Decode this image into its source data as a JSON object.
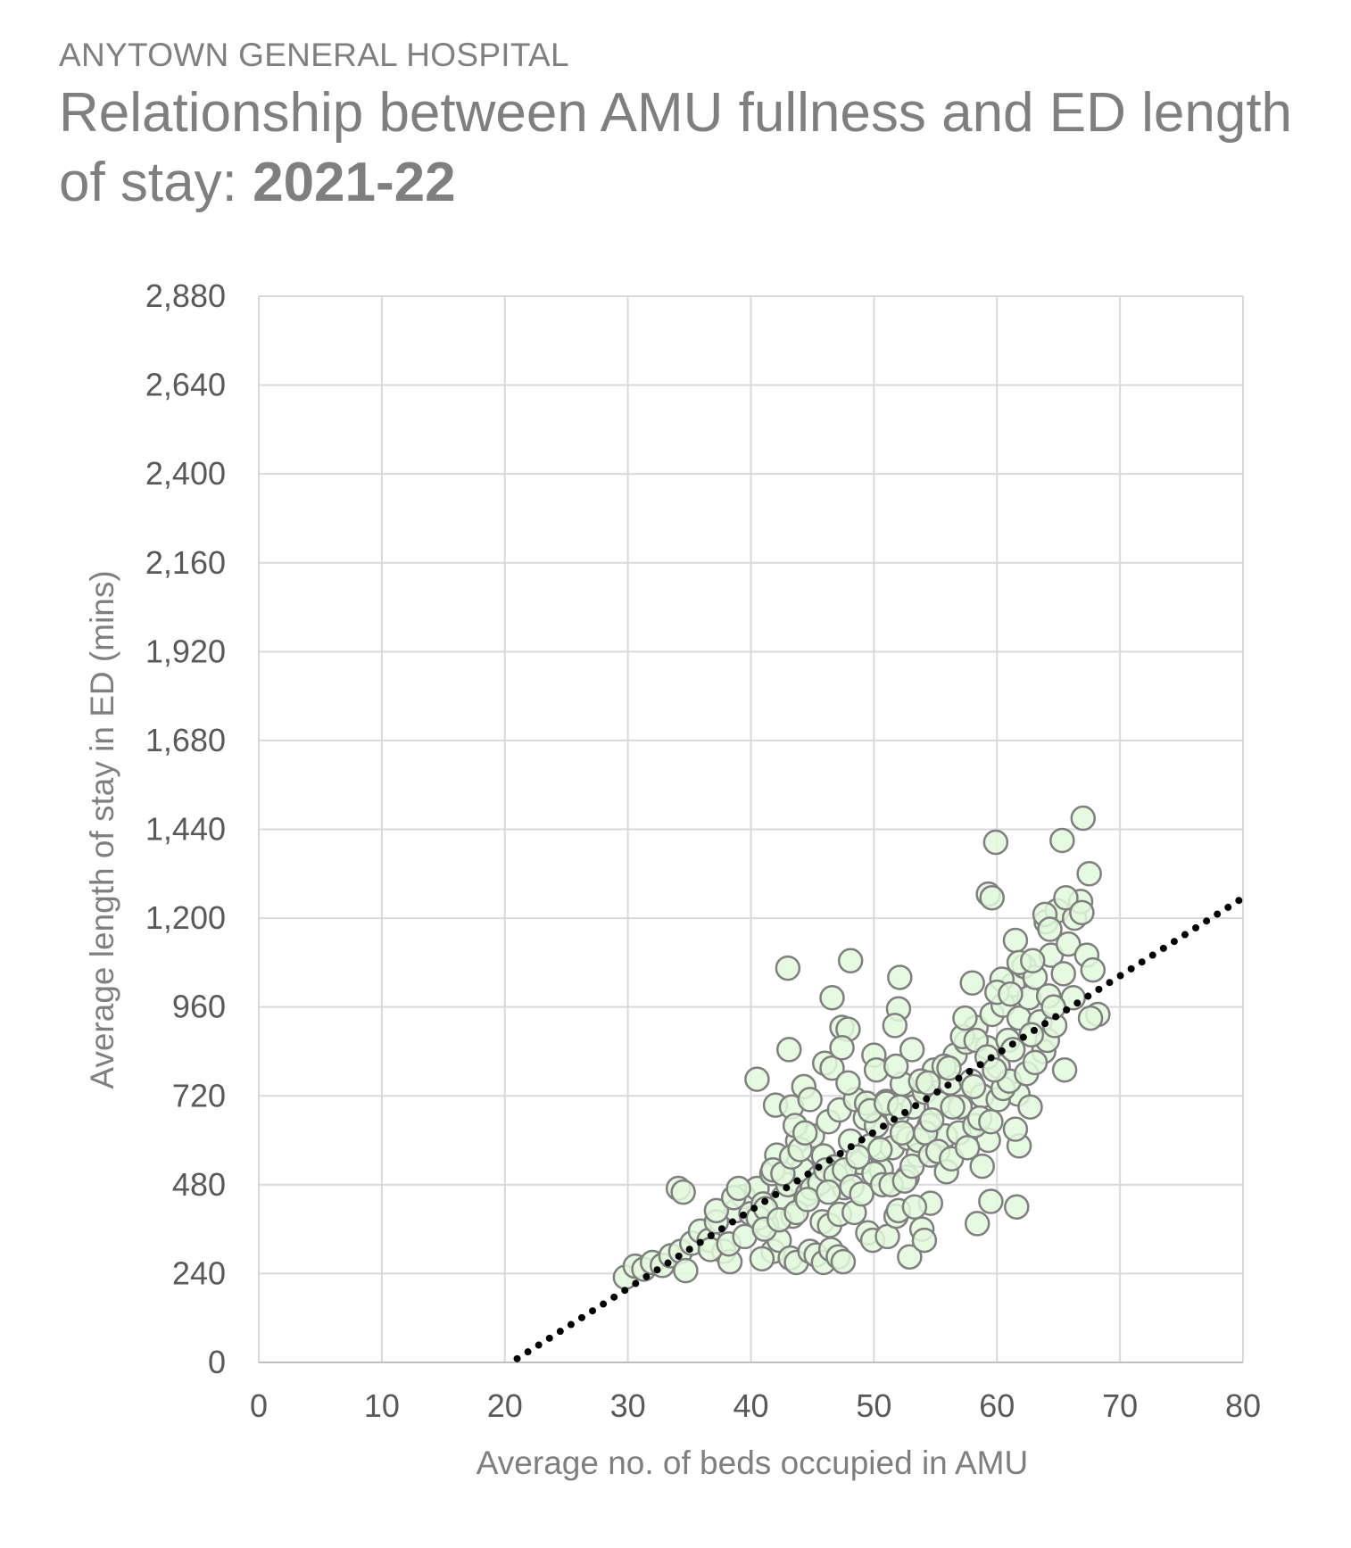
{
  "header": {
    "org": "ANYTOWN GENERAL HOSPITAL",
    "title_main": "Relationship between AMU fullness and ED length of stay: ",
    "title_year": "2021-22"
  },
  "colors": {
    "point_fill": "#e2f8dc",
    "point_stroke": "#7f7f7f",
    "gridline": "#d9d9d9",
    "trend": "#000000",
    "text": "#7f7f7f"
  },
  "chart_data": {
    "type": "scatter",
    "xlabel": "Average no. of beds occupied in AMU",
    "ylabel": "Average length of stay in ED (mins)",
    "xlim": [
      0,
      80
    ],
    "ylim": [
      0,
      2880
    ],
    "x_ticks": [
      0,
      10,
      20,
      30,
      40,
      50,
      60,
      70,
      80
    ],
    "x_tick_labels": [
      "0",
      "10",
      "20",
      "30",
      "40",
      "50",
      "60",
      "70",
      "80"
    ],
    "y_ticks": [
      0,
      240,
      480,
      720,
      960,
      1200,
      1440,
      1680,
      1920,
      2160,
      2400,
      2640,
      2880
    ],
    "y_tick_labels": [
      "0",
      "240",
      "480",
      "720",
      "960",
      "1,200",
      "1,440",
      "1,680",
      "1,920",
      "2,160",
      "2,400",
      "2,640",
      "2,880"
    ],
    "grid": true,
    "legend": "none",
    "trendline": {
      "style": "dotted",
      "x": [
        21,
        80
      ],
      "y": [
        10,
        1255
      ]
    },
    "series": [
      {
        "points": [
          [
            29.8,
            230
          ],
          [
            30.6,
            260
          ],
          [
            31.3,
            252
          ],
          [
            32.0,
            270
          ],
          [
            32.8,
            262
          ],
          [
            33.5,
            288
          ],
          [
            34.3,
            300
          ],
          [
            34.7,
            248
          ],
          [
            35.2,
            322
          ],
          [
            35.9,
            355
          ],
          [
            36.6,
            330
          ],
          [
            37.2,
            380
          ],
          [
            37.8,
            300
          ],
          [
            38.3,
            272
          ],
          [
            38.8,
            410
          ],
          [
            39.4,
            448
          ],
          [
            40.0,
            402
          ],
          [
            40.5,
            470
          ],
          [
            41.0,
            428
          ],
          [
            41.3,
            370
          ],
          [
            41.7,
            510
          ],
          [
            42.1,
            560
          ],
          [
            42.6,
            445
          ],
          [
            43.0,
            480
          ],
          [
            43.4,
            395
          ],
          [
            43.8,
            598
          ],
          [
            44.2,
            520
          ],
          [
            44.6,
            455
          ],
          [
            45.0,
            612
          ],
          [
            45.5,
            500
          ],
          [
            45.9,
            558
          ],
          [
            46.3,
            650
          ],
          [
            46.8,
            528
          ],
          [
            47.2,
            682
          ],
          [
            47.6,
            472
          ],
          [
            48.1,
            598
          ],
          [
            48.5,
            710
          ],
          [
            48.9,
            540
          ],
          [
            49.3,
            660
          ],
          [
            49.7,
            585
          ],
          [
            50.2,
            640
          ],
          [
            50.6,
            520
          ],
          [
            51.0,
            705
          ],
          [
            51.5,
            580
          ],
          [
            51.9,
            668
          ],
          [
            52.3,
            752
          ],
          [
            52.8,
            605
          ],
          [
            53.2,
            690
          ],
          [
            53.6,
            560
          ],
          [
            54.1,
            730
          ],
          [
            54.5,
            640
          ],
          [
            54.9,
            790
          ],
          [
            55.3,
            700
          ],
          [
            55.8,
            612
          ],
          [
            56.2,
            755
          ],
          [
            56.6,
            830
          ],
          [
            57.0,
            690
          ],
          [
            57.5,
            865
          ],
          [
            57.9,
            760
          ],
          [
            58.3,
            905
          ],
          [
            58.8,
            720
          ],
          [
            59.2,
            850
          ],
          [
            59.6,
            940
          ],
          [
            60.1,
            800
          ],
          [
            60.5,
            965
          ],
          [
            60.9,
            870
          ],
          [
            61.3,
            1020
          ],
          [
            61.8,
            930
          ],
          [
            62.2,
            1070
          ],
          [
            62.6,
            985
          ],
          [
            63.1,
            1040
          ],
          [
            63.5,
            920
          ],
          [
            64.0,
            1190
          ],
          [
            64.4,
            1100
          ],
          [
            64.9,
            1220
          ],
          [
            65.4,
            1050
          ],
          [
            65.8,
            1130
          ],
          [
            66.3,
            1200
          ],
          [
            66.8,
            1245
          ],
          [
            67.3,
            1100
          ],
          [
            67.8,
            1060
          ],
          [
            68.2,
            940
          ],
          [
            67.5,
            1320
          ],
          [
            67.0,
            1470
          ],
          [
            65.3,
            1410
          ],
          [
            59.9,
            1405
          ],
          [
            59.3,
            1265
          ],
          [
            59.6,
            1255
          ],
          [
            61.5,
            1140
          ],
          [
            63.9,
            1210
          ],
          [
            61.8,
            1080
          ],
          [
            58.0,
            1025
          ],
          [
            60.4,
            1035
          ],
          [
            62.9,
            1085
          ],
          [
            65.6,
            1255
          ],
          [
            64.3,
            1170
          ],
          [
            66.9,
            1215
          ],
          [
            67.6,
            930
          ],
          [
            63.8,
            840
          ],
          [
            65.5,
            790
          ],
          [
            64.2,
            990
          ],
          [
            66.2,
            985
          ],
          [
            43.1,
            845
          ],
          [
            43.0,
            1065
          ],
          [
            48.1,
            1085
          ],
          [
            46.6,
            985
          ],
          [
            47.4,
            905
          ],
          [
            47.9,
            900
          ],
          [
            52.1,
            1040
          ],
          [
            52.0,
            955
          ],
          [
            51.7,
            910
          ],
          [
            53.1,
            845
          ],
          [
            50.0,
            830
          ],
          [
            50.2,
            790
          ],
          [
            51.8,
            800
          ],
          [
            40.5,
            765
          ],
          [
            42.0,
            695
          ],
          [
            43.3,
            690
          ],
          [
            44.3,
            745
          ],
          [
            44.8,
            710
          ],
          [
            46.0,
            808
          ],
          [
            46.6,
            795
          ],
          [
            47.4,
            850
          ],
          [
            47.9,
            755
          ],
          [
            49.4,
            700
          ],
          [
            49.7,
            680
          ],
          [
            51.0,
            700
          ],
          [
            52.1,
            690
          ],
          [
            53.8,
            760
          ],
          [
            54.4,
            755
          ],
          [
            55.7,
            800
          ],
          [
            56.1,
            795
          ],
          [
            57.2,
            880
          ],
          [
            58.3,
            870
          ],
          [
            59.2,
            825
          ],
          [
            60.0,
            1000
          ],
          [
            57.4,
            930
          ],
          [
            61.1,
            995
          ],
          [
            61.7,
            725
          ],
          [
            62.7,
            690
          ],
          [
            61.8,
            585
          ],
          [
            61.5,
            630
          ],
          [
            61.6,
            420
          ],
          [
            59.5,
            435
          ],
          [
            58.4,
            375
          ],
          [
            58.8,
            530
          ],
          [
            59.3,
            600
          ],
          [
            34.1,
            470
          ],
          [
            34.5,
            460
          ],
          [
            37.2,
            410
          ],
          [
            38.6,
            445
          ],
          [
            39.0,
            470
          ],
          [
            40.6,
            390
          ],
          [
            41.2,
            415
          ],
          [
            41.8,
            300
          ],
          [
            40.9,
            280
          ],
          [
            42.3,
            330
          ],
          [
            43.2,
            282
          ],
          [
            43.7,
            270
          ],
          [
            44.8,
            300
          ],
          [
            45.3,
            290
          ],
          [
            45.9,
            270
          ],
          [
            46.5,
            305
          ],
          [
            47.1,
            285
          ],
          [
            47.5,
            272
          ],
          [
            45.8,
            380
          ],
          [
            46.4,
            370
          ],
          [
            47.2,
            400
          ],
          [
            48.4,
            405
          ],
          [
            49.5,
            350
          ],
          [
            49.9,
            330
          ],
          [
            51.1,
            340
          ],
          [
            51.8,
            395
          ],
          [
            52.0,
            410
          ],
          [
            52.9,
            285
          ],
          [
            53.9,
            360
          ],
          [
            54.1,
            330
          ],
          [
            54.6,
            430
          ],
          [
            53.3,
            420
          ],
          [
            52.7,
            500
          ],
          [
            41.8,
            520
          ],
          [
            42.6,
            510
          ],
          [
            43.3,
            555
          ],
          [
            43.6,
            640
          ],
          [
            44.0,
            575
          ],
          [
            44.4,
            620
          ],
          [
            45.0,
            470
          ],
          [
            45.6,
            485
          ],
          [
            46.1,
            520
          ],
          [
            46.9,
            505
          ],
          [
            47.6,
            520
          ],
          [
            48.2,
            475
          ],
          [
            49.0,
            455
          ],
          [
            50.0,
            510
          ],
          [
            50.7,
            480
          ],
          [
            51.4,
            480
          ],
          [
            52.5,
            490
          ],
          [
            53.1,
            530
          ],
          [
            53.6,
            600
          ],
          [
            54.2,
            620
          ],
          [
            54.6,
            560
          ],
          [
            55.2,
            570
          ],
          [
            55.9,
            515
          ],
          [
            56.3,
            550
          ],
          [
            56.9,
            620
          ],
          [
            57.6,
            580
          ],
          [
            58.2,
            640
          ],
          [
            58.6,
            660
          ],
          [
            59.5,
            650
          ],
          [
            60.1,
            710
          ],
          [
            60.5,
            740
          ],
          [
            61.0,
            760
          ],
          [
            62.4,
            780
          ],
          [
            63.1,
            810
          ],
          [
            64.1,
            870
          ],
          [
            64.7,
            910
          ],
          [
            36.7,
            305
          ],
          [
            38.2,
            320
          ],
          [
            39.5,
            340
          ],
          [
            41.1,
            360
          ],
          [
            42.3,
            385
          ],
          [
            43.7,
            405
          ],
          [
            44.6,
            440
          ],
          [
            46.3,
            460
          ],
          [
            48.7,
            555
          ],
          [
            50.5,
            575
          ],
          [
            52.3,
            620
          ],
          [
            54.7,
            655
          ],
          [
            56.4,
            690
          ],
          [
            58.1,
            745
          ],
          [
            59.8,
            790
          ],
          [
            61.3,
            845
          ],
          [
            62.8,
            885
          ],
          [
            64.6,
            960
          ]
        ]
      }
    ]
  }
}
